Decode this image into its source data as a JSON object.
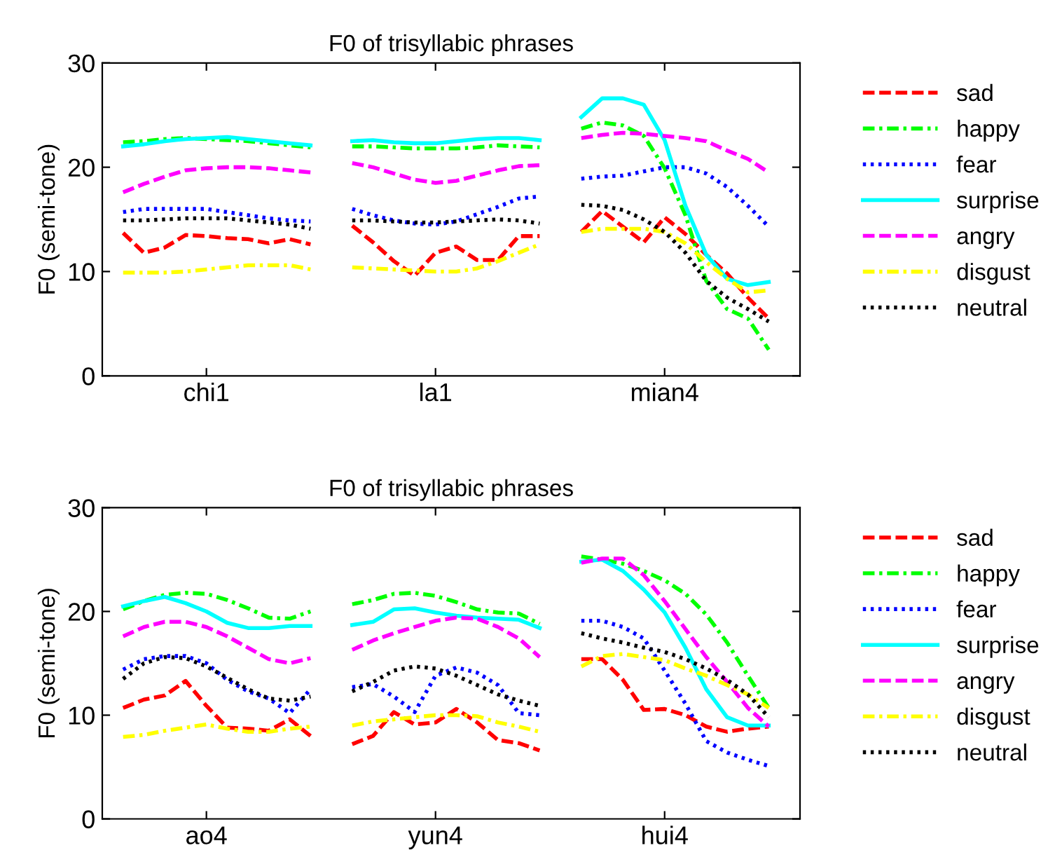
{
  "chart_data": [
    {
      "type": "line",
      "title": "F0 of trisyllabic phrases",
      "ylabel": "F0 (semi-tone)",
      "categories": [
        null,
        null,
        null,
        null,
        "chi1",
        null,
        null,
        null,
        null,
        null,
        null,
        null,
        null,
        null,
        null,
        "la1",
        null,
        null,
        null,
        null,
        null,
        null,
        null,
        null,
        null,
        null,
        "mian4",
        null,
        null,
        null,
        null,
        null
      ],
      "ylim": [
        0,
        30
      ],
      "yticks": [
        0,
        10,
        20,
        30
      ],
      "grid": false,
      "legend": "right",
      "marker": "none",
      "series": [
        {
          "name": "sad",
          "color": "#ff0000",
          "line_style": "dashed",
          "values": [
            13.7,
            11.8,
            12.3,
            13.5,
            13.4,
            13.2,
            13.1,
            12.7,
            13.1,
            12.6,
            null,
            14.4,
            12.8,
            11.0,
            9.6,
            11.8,
            12.4,
            11.1,
            11.1,
            13.4,
            13.4,
            null,
            13.8,
            15.8,
            14.3,
            12.8,
            15.2,
            13.6,
            11.6,
            9.8,
            7.5,
            5.5
          ]
        },
        {
          "name": "happy",
          "color": "#00ff00",
          "line_style": "dashdot",
          "values": [
            22.4,
            22.5,
            22.7,
            22.8,
            22.7,
            22.6,
            22.5,
            22.3,
            22.1,
            21.9,
            null,
            22.0,
            22.0,
            21.9,
            21.8,
            21.8,
            21.8,
            21.9,
            22.1,
            22.0,
            21.9,
            null,
            23.7,
            24.3,
            24.0,
            23.0,
            19.9,
            15.4,
            9.1,
            6.4,
            5.5,
            2.5
          ]
        },
        {
          "name": "fear",
          "color": "#0000ff",
          "line_style": "dotted",
          "values": [
            15.7,
            16.0,
            16.0,
            16.0,
            16.0,
            15.7,
            15.4,
            15.1,
            14.9,
            14.8,
            null,
            16.0,
            15.4,
            14.9,
            14.6,
            14.5,
            14.8,
            15.5,
            16.2,
            17.0,
            17.2,
            null,
            18.9,
            19.1,
            19.2,
            19.6,
            20.0,
            20.0,
            19.4,
            18.1,
            16.3,
            14.3
          ]
        },
        {
          "name": "surprise",
          "color": "#00ffff",
          "line_style": "solid",
          "values": [
            22.0,
            22.2,
            22.5,
            22.7,
            22.8,
            22.9,
            22.7,
            22.5,
            22.3,
            22.1,
            null,
            22.5,
            22.6,
            22.4,
            22.3,
            22.3,
            22.5,
            22.7,
            22.8,
            22.8,
            22.6,
            null,
            24.8,
            26.6,
            26.6,
            26.0,
            22.6,
            16.3,
            11.6,
            9.3,
            8.7,
            9.0
          ]
        },
        {
          "name": "angry",
          "color": "#ff00ff",
          "line_style": "dashed",
          "values": [
            17.6,
            18.4,
            19.1,
            19.7,
            19.9,
            20.0,
            20.0,
            19.9,
            19.7,
            19.5,
            null,
            20.4,
            20.0,
            19.4,
            18.8,
            18.5,
            18.7,
            19.2,
            19.7,
            20.1,
            20.2,
            null,
            22.8,
            23.1,
            23.3,
            23.2,
            23.0,
            22.8,
            22.5,
            21.6,
            20.8,
            19.5
          ]
        },
        {
          "name": "disgust",
          "color": "#ffff00",
          "line_style": "dashdot",
          "values": [
            9.9,
            9.9,
            9.9,
            10.0,
            10.2,
            10.4,
            10.6,
            10.6,
            10.6,
            10.2,
            null,
            10.4,
            10.3,
            10.2,
            10.1,
            10.0,
            10.0,
            10.3,
            11.0,
            11.8,
            12.6,
            null,
            13.8,
            14.1,
            14.1,
            14.1,
            13.8,
            12.7,
            10.9,
            9.3,
            8.0,
            8.2
          ]
        },
        {
          "name": "neutral",
          "color": "#000000",
          "line_style": "dotted",
          "values": [
            14.9,
            14.9,
            15.0,
            15.1,
            15.1,
            15.1,
            14.9,
            14.7,
            14.5,
            14.1,
            null,
            14.9,
            14.9,
            14.8,
            14.7,
            14.7,
            14.8,
            14.9,
            15.0,
            14.9,
            14.6,
            null,
            16.4,
            16.3,
            15.9,
            15.0,
            13.8,
            11.8,
            9.1,
            7.5,
            6.4,
            5.2
          ]
        }
      ]
    },
    {
      "type": "line",
      "title": "F0 of trisyllabic phrases",
      "ylabel": "F0 (semi-tone)",
      "categories": [
        null,
        null,
        null,
        null,
        "ao4",
        null,
        null,
        null,
        null,
        null,
        null,
        null,
        null,
        null,
        null,
        "yun4",
        null,
        null,
        null,
        null,
        null,
        null,
        null,
        null,
        null,
        null,
        "hui4",
        null,
        null,
        null,
        null,
        null
      ],
      "ylim": [
        0,
        30
      ],
      "yticks": [
        0,
        10,
        20,
        30
      ],
      "grid": false,
      "legend": "right",
      "marker": "none",
      "series": [
        {
          "name": "sad",
          "color": "#ff0000",
          "line_style": "dashed",
          "values": [
            10.7,
            11.5,
            11.9,
            13.3,
            10.9,
            8.8,
            8.7,
            8.5,
            9.6,
            8.0,
            null,
            7.2,
            8.0,
            10.3,
            9.1,
            9.3,
            10.6,
            9.3,
            7.6,
            7.3,
            6.6,
            null,
            15.4,
            15.4,
            13.4,
            10.5,
            10.6,
            10.0,
            8.9,
            8.4,
            8.7,
            8.9
          ]
        },
        {
          "name": "happy",
          "color": "#00ff00",
          "line_style": "dashdot",
          "values": [
            20.2,
            21.0,
            21.6,
            21.8,
            21.7,
            21.1,
            20.3,
            19.4,
            19.3,
            20.0,
            null,
            20.7,
            21.1,
            21.7,
            21.8,
            21.5,
            20.9,
            20.2,
            19.9,
            19.8,
            18.8,
            null,
            25.3,
            25.0,
            24.6,
            23.9,
            23.0,
            21.7,
            19.7,
            17.0,
            13.8,
            10.7
          ]
        },
        {
          "name": "fear",
          "color": "#0000ff",
          "line_style": "dotted",
          "values": [
            14.4,
            15.4,
            15.7,
            15.7,
            15.0,
            13.4,
            12.3,
            11.6,
            10.2,
            12.5,
            null,
            12.7,
            13.0,
            11.8,
            10.3,
            13.8,
            14.6,
            14.1,
            12.9,
            10.2,
            10.0,
            null,
            19.1,
            19.1,
            18.5,
            17.4,
            14.3,
            11.1,
            7.5,
            6.4,
            5.7,
            5.1
          ]
        },
        {
          "name": "surprise",
          "color": "#00ffff",
          "line_style": "solid",
          "values": [
            20.5,
            21.0,
            21.4,
            20.8,
            20.0,
            18.9,
            18.4,
            18.4,
            18.6,
            18.6,
            null,
            18.7,
            19.0,
            20.2,
            20.3,
            19.9,
            19.6,
            19.4,
            19.3,
            19.2,
            18.4,
            null,
            24.8,
            25.0,
            23.9,
            22.1,
            19.9,
            16.5,
            12.5,
            9.8,
            9.0,
            9.0
          ]
        },
        {
          "name": "angry",
          "color": "#ff00ff",
          "line_style": "dashed",
          "values": [
            17.6,
            18.5,
            19.0,
            19.0,
            18.5,
            17.6,
            16.5,
            15.4,
            15.0,
            15.5,
            null,
            16.3,
            17.2,
            17.9,
            18.5,
            19.1,
            19.4,
            19.3,
            18.5,
            17.4,
            15.6,
            null,
            24.7,
            25.1,
            25.1,
            23.5,
            21.0,
            18.3,
            15.6,
            13.2,
            10.7,
            8.9
          ]
        },
        {
          "name": "disgust",
          "color": "#ffff00",
          "line_style": "dashdot",
          "values": [
            7.9,
            8.1,
            8.5,
            8.8,
            9.1,
            8.7,
            8.4,
            8.4,
            8.7,
            8.9,
            null,
            9.0,
            9.4,
            9.6,
            9.8,
            10.0,
            10.0,
            9.9,
            9.3,
            8.9,
            8.4,
            null,
            14.7,
            15.7,
            15.9,
            15.6,
            15.3,
            14.5,
            13.8,
            12.9,
            12.0,
            10.7
          ]
        },
        {
          "name": "neutral",
          "color": "#000000",
          "line_style": "dotted",
          "values": [
            13.5,
            15.0,
            15.6,
            15.5,
            14.7,
            13.6,
            12.5,
            11.6,
            11.4,
            11.8,
            null,
            12.3,
            13.2,
            14.3,
            14.7,
            14.5,
            13.8,
            12.9,
            12.0,
            11.4,
            10.9,
            null,
            17.9,
            17.4,
            17.0,
            16.5,
            16.1,
            15.4,
            14.5,
            13.4,
            12.0,
            9.8
          ]
        }
      ]
    }
  ]
}
